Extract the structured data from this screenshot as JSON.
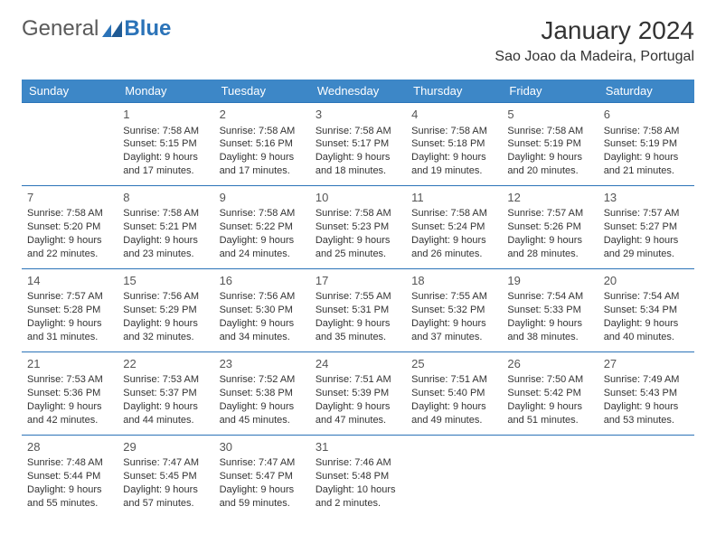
{
  "brand": {
    "part1": "General",
    "part2": "Blue",
    "color": "#2b73b8"
  },
  "title": "January 2024",
  "location": "Sao Joao da Madeira, Portugal",
  "colors": {
    "header_bg": "#3d87c7",
    "header_text": "#ffffff",
    "row_border": "#2b73b8",
    "text": "#333333",
    "background": "#ffffff"
  },
  "typography": {
    "title_fontsize": 28,
    "location_fontsize": 16,
    "weekday_fontsize": 13,
    "daynum_fontsize": 13,
    "body_fontsize": 11
  },
  "weekdays": [
    "Sunday",
    "Monday",
    "Tuesday",
    "Wednesday",
    "Thursday",
    "Friday",
    "Saturday"
  ],
  "grid": [
    [
      null,
      {
        "n": "1",
        "sr": "Sunrise: 7:58 AM",
        "ss": "Sunset: 5:15 PM",
        "d1": "Daylight: 9 hours",
        "d2": "and 17 minutes."
      },
      {
        "n": "2",
        "sr": "Sunrise: 7:58 AM",
        "ss": "Sunset: 5:16 PM",
        "d1": "Daylight: 9 hours",
        "d2": "and 17 minutes."
      },
      {
        "n": "3",
        "sr": "Sunrise: 7:58 AM",
        "ss": "Sunset: 5:17 PM",
        "d1": "Daylight: 9 hours",
        "d2": "and 18 minutes."
      },
      {
        "n": "4",
        "sr": "Sunrise: 7:58 AM",
        "ss": "Sunset: 5:18 PM",
        "d1": "Daylight: 9 hours",
        "d2": "and 19 minutes."
      },
      {
        "n": "5",
        "sr": "Sunrise: 7:58 AM",
        "ss": "Sunset: 5:19 PM",
        "d1": "Daylight: 9 hours",
        "d2": "and 20 minutes."
      },
      {
        "n": "6",
        "sr": "Sunrise: 7:58 AM",
        "ss": "Sunset: 5:19 PM",
        "d1": "Daylight: 9 hours",
        "d2": "and 21 minutes."
      }
    ],
    [
      {
        "n": "7",
        "sr": "Sunrise: 7:58 AM",
        "ss": "Sunset: 5:20 PM",
        "d1": "Daylight: 9 hours",
        "d2": "and 22 minutes."
      },
      {
        "n": "8",
        "sr": "Sunrise: 7:58 AM",
        "ss": "Sunset: 5:21 PM",
        "d1": "Daylight: 9 hours",
        "d2": "and 23 minutes."
      },
      {
        "n": "9",
        "sr": "Sunrise: 7:58 AM",
        "ss": "Sunset: 5:22 PM",
        "d1": "Daylight: 9 hours",
        "d2": "and 24 minutes."
      },
      {
        "n": "10",
        "sr": "Sunrise: 7:58 AM",
        "ss": "Sunset: 5:23 PM",
        "d1": "Daylight: 9 hours",
        "d2": "and 25 minutes."
      },
      {
        "n": "11",
        "sr": "Sunrise: 7:58 AM",
        "ss": "Sunset: 5:24 PM",
        "d1": "Daylight: 9 hours",
        "d2": "and 26 minutes."
      },
      {
        "n": "12",
        "sr": "Sunrise: 7:57 AM",
        "ss": "Sunset: 5:26 PM",
        "d1": "Daylight: 9 hours",
        "d2": "and 28 minutes."
      },
      {
        "n": "13",
        "sr": "Sunrise: 7:57 AM",
        "ss": "Sunset: 5:27 PM",
        "d1": "Daylight: 9 hours",
        "d2": "and 29 minutes."
      }
    ],
    [
      {
        "n": "14",
        "sr": "Sunrise: 7:57 AM",
        "ss": "Sunset: 5:28 PM",
        "d1": "Daylight: 9 hours",
        "d2": "and 31 minutes."
      },
      {
        "n": "15",
        "sr": "Sunrise: 7:56 AM",
        "ss": "Sunset: 5:29 PM",
        "d1": "Daylight: 9 hours",
        "d2": "and 32 minutes."
      },
      {
        "n": "16",
        "sr": "Sunrise: 7:56 AM",
        "ss": "Sunset: 5:30 PM",
        "d1": "Daylight: 9 hours",
        "d2": "and 34 minutes."
      },
      {
        "n": "17",
        "sr": "Sunrise: 7:55 AM",
        "ss": "Sunset: 5:31 PM",
        "d1": "Daylight: 9 hours",
        "d2": "and 35 minutes."
      },
      {
        "n": "18",
        "sr": "Sunrise: 7:55 AM",
        "ss": "Sunset: 5:32 PM",
        "d1": "Daylight: 9 hours",
        "d2": "and 37 minutes."
      },
      {
        "n": "19",
        "sr": "Sunrise: 7:54 AM",
        "ss": "Sunset: 5:33 PM",
        "d1": "Daylight: 9 hours",
        "d2": "and 38 minutes."
      },
      {
        "n": "20",
        "sr": "Sunrise: 7:54 AM",
        "ss": "Sunset: 5:34 PM",
        "d1": "Daylight: 9 hours",
        "d2": "and 40 minutes."
      }
    ],
    [
      {
        "n": "21",
        "sr": "Sunrise: 7:53 AM",
        "ss": "Sunset: 5:36 PM",
        "d1": "Daylight: 9 hours",
        "d2": "and 42 minutes."
      },
      {
        "n": "22",
        "sr": "Sunrise: 7:53 AM",
        "ss": "Sunset: 5:37 PM",
        "d1": "Daylight: 9 hours",
        "d2": "and 44 minutes."
      },
      {
        "n": "23",
        "sr": "Sunrise: 7:52 AM",
        "ss": "Sunset: 5:38 PM",
        "d1": "Daylight: 9 hours",
        "d2": "and 45 minutes."
      },
      {
        "n": "24",
        "sr": "Sunrise: 7:51 AM",
        "ss": "Sunset: 5:39 PM",
        "d1": "Daylight: 9 hours",
        "d2": "and 47 minutes."
      },
      {
        "n": "25",
        "sr": "Sunrise: 7:51 AM",
        "ss": "Sunset: 5:40 PM",
        "d1": "Daylight: 9 hours",
        "d2": "and 49 minutes."
      },
      {
        "n": "26",
        "sr": "Sunrise: 7:50 AM",
        "ss": "Sunset: 5:42 PM",
        "d1": "Daylight: 9 hours",
        "d2": "and 51 minutes."
      },
      {
        "n": "27",
        "sr": "Sunrise: 7:49 AM",
        "ss": "Sunset: 5:43 PM",
        "d1": "Daylight: 9 hours",
        "d2": "and 53 minutes."
      }
    ],
    [
      {
        "n": "28",
        "sr": "Sunrise: 7:48 AM",
        "ss": "Sunset: 5:44 PM",
        "d1": "Daylight: 9 hours",
        "d2": "and 55 minutes."
      },
      {
        "n": "29",
        "sr": "Sunrise: 7:47 AM",
        "ss": "Sunset: 5:45 PM",
        "d1": "Daylight: 9 hours",
        "d2": "and 57 minutes."
      },
      {
        "n": "30",
        "sr": "Sunrise: 7:47 AM",
        "ss": "Sunset: 5:47 PM",
        "d1": "Daylight: 9 hours",
        "d2": "and 59 minutes."
      },
      {
        "n": "31",
        "sr": "Sunrise: 7:46 AM",
        "ss": "Sunset: 5:48 PM",
        "d1": "Daylight: 10 hours",
        "d2": "and 2 minutes."
      },
      null,
      null,
      null
    ]
  ]
}
